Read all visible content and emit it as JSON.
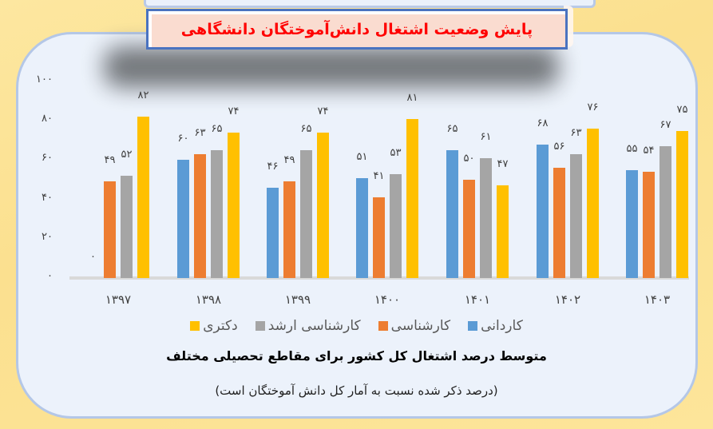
{
  "title": "پایش وضعیت اشتغال دانش‌آموختگان دانشگاهی",
  "caption": "متوسط درصد اشتغال کل کشور برای مقاطع تحصیلی مختلف",
  "note": "(درصد ذکر شده نسبت به آمار کل دانش آموختگان است)",
  "colors": {
    "kardani": "#5b9bd5",
    "karshenasi": "#ed7d31",
    "arshad": "#a5a5a5",
    "doktori": "#ffc000",
    "title_text": "#ff0000",
    "panel_bg": "#ecf2fb",
    "outer_bg": "#fde495"
  },
  "y_ticks": [
    "۰",
    "۲۰",
    "۴۰",
    "۶۰",
    "۸۰",
    "۱۰۰"
  ],
  "x_ticks": [
    "۱۳۹۷",
    "۱۳۹۸",
    "۱۳۹۹",
    "۱۴۰۰",
    "۱۴۰۱",
    "۱۴۰۲",
    "۱۴۰۳"
  ],
  "legend": [
    "کاردانی",
    "کارشناسی",
    "کارشناسی ارشد",
    "دکتری"
  ],
  "labels": [
    [
      "۰",
      "۴۹",
      "۵۲",
      "۸۲"
    ],
    [
      "۶۰",
      "۶۳",
      "۶۵",
      "۷۴"
    ],
    [
      "۴۶",
      "۴۹",
      "۶۵",
      "۷۴"
    ],
    [
      "۵۱",
      "۴۱",
      "۵۳",
      "۸۱"
    ],
    [
      "۶۵",
      "۵۰",
      "۶۱",
      "۴۷"
    ],
    [
      "۶۸",
      "۵۶",
      "۶۳",
      "۷۶"
    ],
    [
      "۵۵",
      "۵۴",
      "۶۷",
      "۷۵"
    ]
  ],
  "chart_data": {
    "type": "bar",
    "title": "پایش وضعیت اشتغال دانش‌آموختگان دانشگاهی",
    "subtitle": "متوسط درصد اشتغال کل کشور برای مقاطع تحصیلی مختلف",
    "note": "(درصد ذکر شده نسبت به آمار کل دانش آموختگان است)",
    "categories": [
      "1397",
      "1398",
      "1399",
      "1400",
      "1401",
      "1402",
      "1403"
    ],
    "series": [
      {
        "name": "کاردانی",
        "color": "#5b9bd5",
        "values": [
          0,
          60,
          46,
          51,
          65,
          68,
          55
        ]
      },
      {
        "name": "کارشناسی",
        "color": "#ed7d31",
        "values": [
          49,
          63,
          49,
          41,
          50,
          56,
          54
        ]
      },
      {
        "name": "کارشناسی ارشد",
        "color": "#a5a5a5",
        "values": [
          52,
          65,
          65,
          53,
          61,
          63,
          67
        ]
      },
      {
        "name": "دکتری",
        "color": "#ffc000",
        "values": [
          82,
          74,
          74,
          81,
          47,
          76,
          75
        ]
      }
    ],
    "xlabel": "",
    "ylabel": "",
    "ylim": [
      0,
      100
    ],
    "yticks": [
      0,
      20,
      40,
      60,
      80,
      100
    ],
    "grid": false,
    "legend_position": "bottom"
  }
}
